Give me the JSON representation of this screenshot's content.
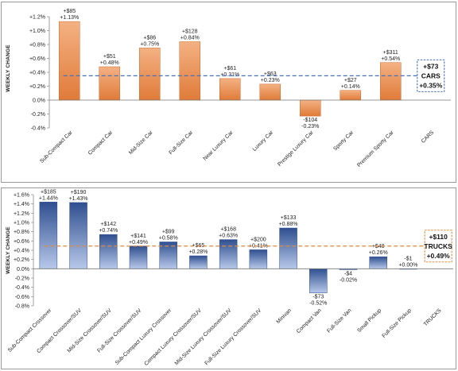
{
  "chart_data": [
    {
      "type": "bar",
      "ylabel": "WEEKLY CHANGE",
      "ylim": [
        -0.4,
        1.2
      ],
      "ytick_step": 0.2,
      "ytick_labels": [
        "-0.4%",
        "-0.2%",
        "0.0%",
        "+0.2%",
        "+0.4%",
        "+0.6%",
        "+0.8%",
        "+1.0%",
        "+1.2%"
      ],
      "categories": [
        "Sub-Compact Car",
        "Compact Car",
        "Mid-Size Car",
        "Full-Size Car",
        "Near Luxury Car",
        "Luxury Car",
        "Prestige Luxury Car",
        "Sporty Car",
        "Premium Sporty Car",
        "CARS"
      ],
      "values": [
        1.13,
        0.48,
        0.75,
        0.84,
        0.31,
        0.23,
        -0.23,
        0.14,
        0.54,
        null
      ],
      "data_labels_dollar": [
        "+$85",
        "+$51",
        "+$86",
        "+$128",
        "+$61",
        "+$63",
        "-$104",
        "+$27",
        "+$311",
        ""
      ],
      "data_labels_pct": [
        "+1.13%",
        "+0.48%",
        "+0.75%",
        "+0.84%",
        "+0.31%",
        "+0.23%",
        "-0.23%",
        "+0.14%",
        "+0.54%",
        ""
      ],
      "average_line": 0.35,
      "summary": {
        "dollar": "+$73",
        "name": "CARS",
        "pct": "+0.35%"
      },
      "bar_color_top": "#f4b183",
      "bar_color_bottom": "#e07b39",
      "bar_border": "#c86a2a",
      "line_color": "#4a72b8",
      "summary_border": "#4a72b8"
    },
    {
      "type": "bar",
      "ylabel": "WEEKLY CHANGE",
      "ylim": [
        -0.8,
        1.6
      ],
      "ytick_step": 0.2,
      "ytick_labels": [
        "-0.8%",
        "-0.6%",
        "-0.4%",
        "-0.2%",
        "0.0%",
        "+0.2%",
        "+0.4%",
        "+0.6%",
        "+0.8%",
        "+1.0%",
        "+1.2%",
        "+1.4%",
        "+1.6%"
      ],
      "categories": [
        "Sub-Compact Crossover",
        "Compact Crossover/SUV",
        "Mid-Size Crossover/SUV",
        "Full-Size Crossover/SUV",
        "Sub-Compact Luxury Crossover",
        "Compact Luxury Crossover/SUV",
        "Mid-Size Luxury Crossover/SUV",
        "Full-Size Luxury Crossover/SUV",
        "Minivan",
        "Compact Van",
        "Full-Size Van",
        "Small Pickup",
        "Full-Size Pickup",
        "TRUCKS"
      ],
      "values": [
        1.44,
        1.43,
        0.74,
        0.49,
        0.58,
        0.28,
        0.63,
        0.41,
        0.88,
        -0.52,
        -0.02,
        0.26,
        0.0,
        null
      ],
      "data_labels_dollar": [
        "+$185",
        "+$190",
        "+$142",
        "+$141",
        "+$99",
        "+$65",
        "+$168",
        "+$200",
        "+$133",
        "-$73",
        "-$4",
        "+$48",
        "-$1",
        ""
      ],
      "data_labels_pct": [
        "+1.44%",
        "+1.43%",
        "+0.74%",
        "+0.49%",
        "+0.58%",
        "+0.28%",
        "+0.63%",
        "+0.41%",
        "+0.88%",
        "-0.52%",
        "-0.02%",
        "+0.26%",
        "+0.00%",
        ""
      ],
      "average_line": 0.49,
      "summary": {
        "dollar": "+$110",
        "name": "TRUCKS",
        "pct": "+0.49%"
      },
      "bar_color_top": "#2f4f8f",
      "bar_color_bottom": "#b7c8ea",
      "bar_border": "#2f4f8f",
      "line_color": "#e08a3c",
      "summary_border": "#e08a3c"
    }
  ]
}
